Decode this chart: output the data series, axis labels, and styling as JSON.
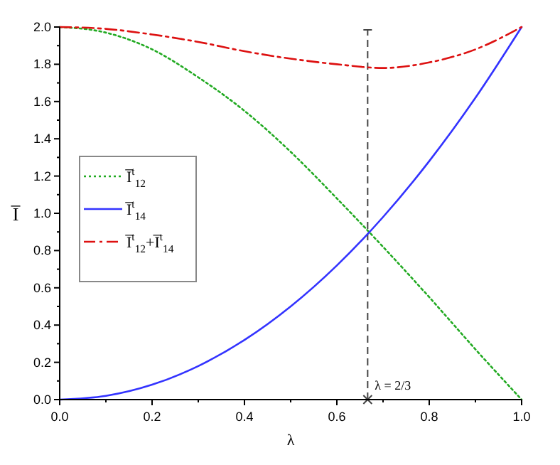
{
  "chart_data": {
    "type": "line",
    "xlabel": "λ",
    "ylabel": "I̅",
    "x": [
      0,
      0.1,
      0.2,
      0.3,
      0.4,
      0.5,
      0.6,
      0.7,
      0.8,
      0.9,
      1
    ],
    "series": [
      {
        "name": "I̅$^{t}$$_{12}$",
        "color": "#22aa22",
        "line_style": "dotted",
        "values": [
          2.0,
          1.97,
          1.88,
          1.73,
          1.55,
          1.33,
          1.08,
          0.82,
          0.55,
          0.27,
          0
        ]
      },
      {
        "name": "I̅$^{t}$$_{14}$",
        "color": "#3333ff",
        "line_style": "solid",
        "values": [
          0,
          0.02,
          0.08,
          0.18,
          0.32,
          0.5,
          0.72,
          0.98,
          1.28,
          1.62,
          2.0
        ]
      },
      {
        "name": "I̅$^{t}$$_{12}$+I̅$^{t}$$_{14}$",
        "color": "#dd1111",
        "line_style": "dashdot",
        "values": [
          2.0,
          1.99,
          1.96,
          1.92,
          1.87,
          1.83,
          1.8,
          1.78,
          1.81,
          1.88,
          2.0
        ]
      }
    ],
    "xlim": [
      0,
      1
    ],
    "xticks": [
      {
        "value": 0,
        "label": "0.0"
      },
      0.2,
      0.4,
      0.6,
      0.8,
      {
        "value": 1,
        "label": "1.0"
      }
    ],
    "ylim": [
      0,
      2
    ],
    "yticks": [
      {
        "value": 0,
        "label": "0.0"
      },
      0.2,
      0.4,
      0.6,
      0.8,
      {
        "value": 1,
        "label": "1.0"
      },
      1.2,
      1.4,
      1.6,
      1.8,
      {
        "value": 2,
        "label": "2.0"
      }
    ],
    "ref_lines": [
      {
        "axis": "x",
        "value": 0.6667,
        "color": "#444444",
        "line_style": "dashed"
      }
    ],
    "annotations": [
      {
        "text": "λ = 2/3",
        "x": 0.6667,
        "y": 0
      }
    ],
    "legend": "left",
    "grid": false
  }
}
